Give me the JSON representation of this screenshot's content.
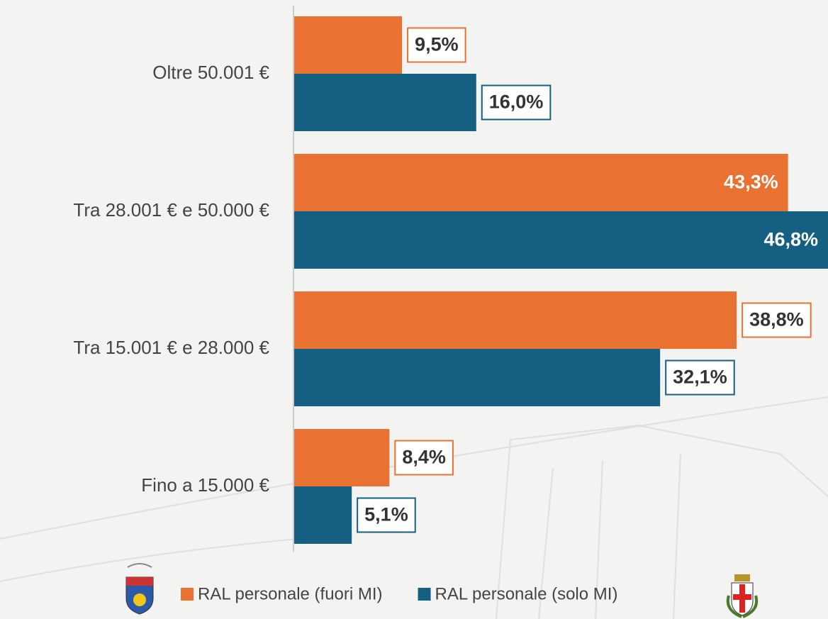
{
  "chart_data": {
    "type": "bar",
    "orientation": "horizontal",
    "categories": [
      "Oltre 50.001 €",
      "Tra 28.001 € e 50.000 €",
      "Tra 15.001 € e 28.000 €",
      "Fino a 15.000 €"
    ],
    "series": [
      {
        "name": "RAL personale (fuori MI)",
        "color": "#E97132",
        "values": [
          9.5,
          43.3,
          38.8,
          8.4
        ],
        "value_labels": [
          "9,5%",
          "43,3%",
          "38,8%",
          "8,4%"
        ]
      },
      {
        "name": "RAL personale (solo MI)",
        "color": "#156082",
        "values": [
          16.0,
          46.8,
          32.1,
          5.1
        ],
        "value_labels": [
          "16,0%",
          "46,8%",
          "32,1%",
          "5,1%"
        ]
      }
    ],
    "legend": "bottom"
  }
}
